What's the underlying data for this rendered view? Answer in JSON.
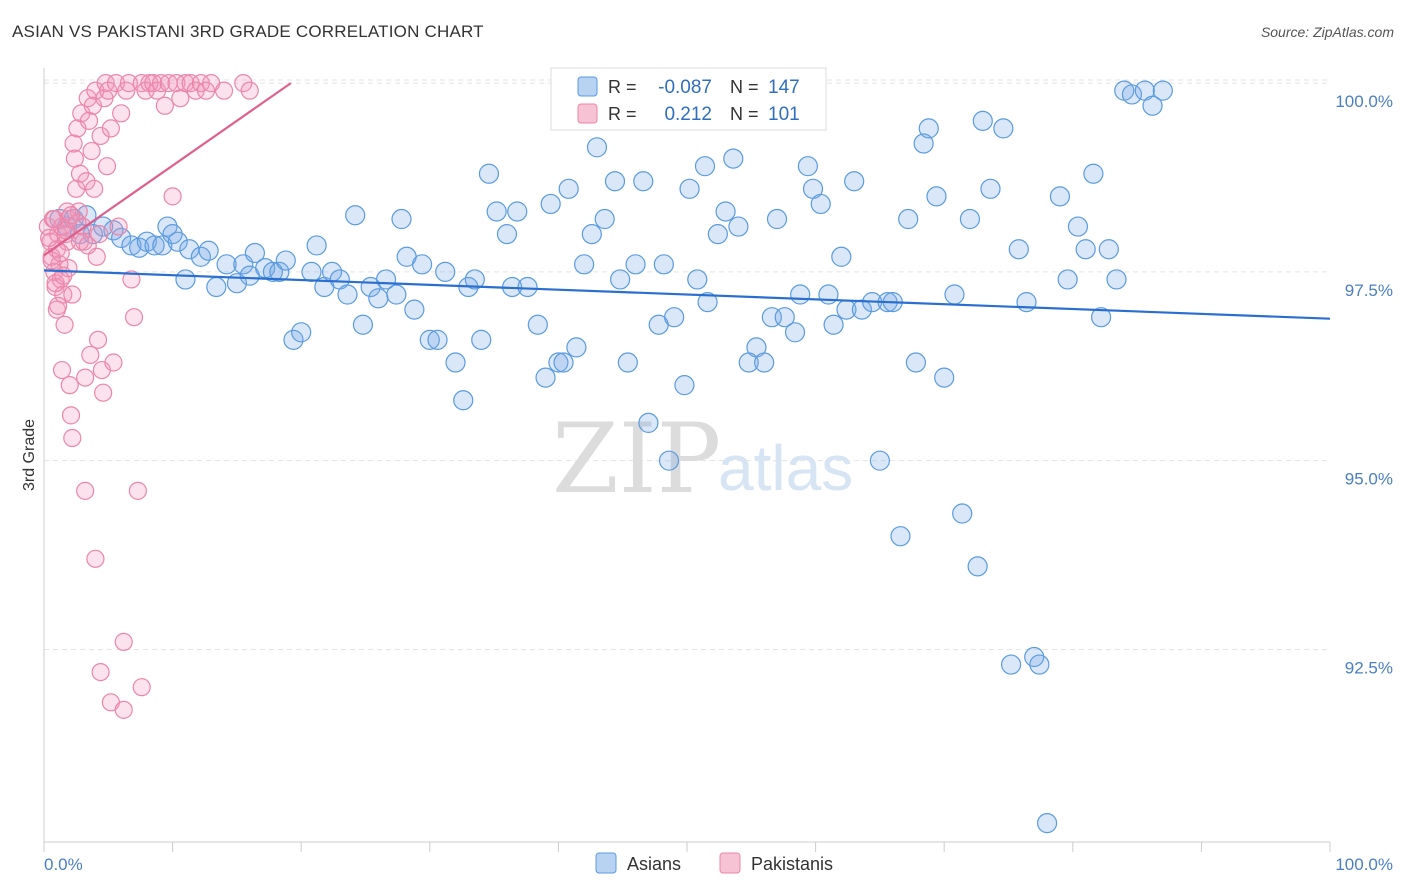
{
  "title": "ASIAN VS PAKISTANI 3RD GRADE CORRELATION CHART",
  "source": "Source: ZipAtlas.com",
  "watermark": {
    "zip": "ZIP",
    "atlas": "atlas"
  },
  "colors": {
    "blue": "#5b9be0",
    "blue_fill": "rgba(120,170,230,0.28)",
    "blue_line": "#2a6fd0",
    "pink": "#ec86a8",
    "pink_fill": "rgba(240,150,185,0.28)",
    "pink_line": "#e0608c",
    "grid": "#e3e3e3",
    "axis": "#cccccc"
  },
  "legend": {
    "rows": [
      {
        "r_label": "R =",
        "r_value": "-0.087",
        "n_label": "N =",
        "n_value": "147"
      },
      {
        "r_label": "R =",
        "r_value": "0.212",
        "n_label": "N =",
        "n_value": "101"
      }
    ]
  },
  "bottom_legend": [
    "Asians",
    "Pakistanis"
  ],
  "chart_data": {
    "type": "scatter",
    "title": "ASIAN VS PAKISTANI 3RD GRADE CORRELATION CHART",
    "xlabel": "",
    "ylabel": "3rd Grade",
    "xlim": [
      0,
      100
    ],
    "ylim": [
      89.95,
      100.2
    ],
    "x_tick_labels": [
      "0.0%",
      "100.0%"
    ],
    "y_ticks": [
      92.5,
      95.0,
      97.5,
      100.0
    ],
    "y_tick_labels": [
      "92.5%",
      "95.0%",
      "97.5%",
      "100.0%"
    ],
    "series": [
      {
        "name": "Asians",
        "R": -0.087,
        "N": 147,
        "trend": {
          "x": [
            0,
            100
          ],
          "y": [
            97.52,
            96.88
          ]
        },
        "points": [
          [
            1.2,
            98.2
          ],
          [
            1.8,
            98.1
          ],
          [
            2.3,
            98.2
          ],
          [
            2.8,
            98.0
          ],
          [
            3.3,
            98.25
          ],
          [
            3.8,
            98.0
          ],
          [
            4.6,
            98.1
          ],
          [
            5.4,
            98.05
          ],
          [
            6.0,
            97.95
          ],
          [
            6.8,
            97.85
          ],
          [
            7.4,
            97.82
          ],
          [
            8.0,
            97.9
          ],
          [
            8.6,
            97.85
          ],
          [
            9.2,
            97.85
          ],
          [
            9.6,
            98.1
          ],
          [
            10.0,
            98.0
          ],
          [
            10.4,
            97.9
          ],
          [
            11.0,
            97.4
          ],
          [
            11.3,
            97.8
          ],
          [
            12.2,
            97.7
          ],
          [
            12.8,
            97.78
          ],
          [
            13.4,
            97.3
          ],
          [
            14.2,
            97.6
          ],
          [
            15.0,
            97.35
          ],
          [
            15.5,
            97.6
          ],
          [
            16.0,
            97.45
          ],
          [
            16.4,
            97.75
          ],
          [
            17.2,
            97.55
          ],
          [
            17.8,
            97.5
          ],
          [
            18.3,
            97.5
          ],
          [
            18.8,
            97.65
          ],
          [
            19.4,
            96.6
          ],
          [
            20.0,
            96.7
          ],
          [
            20.8,
            97.5
          ],
          [
            21.2,
            97.85
          ],
          [
            21.8,
            97.3
          ],
          [
            22.4,
            97.5
          ],
          [
            23.0,
            97.4
          ],
          [
            23.6,
            97.2
          ],
          [
            24.2,
            98.25
          ],
          [
            24.8,
            96.8
          ],
          [
            25.4,
            97.3
          ],
          [
            26.0,
            97.15
          ],
          [
            26.6,
            97.4
          ],
          [
            27.4,
            97.2
          ],
          [
            27.8,
            98.2
          ],
          [
            28.2,
            97.7
          ],
          [
            28.8,
            97.0
          ],
          [
            29.4,
            97.6
          ],
          [
            30.0,
            96.6
          ],
          [
            30.6,
            96.6
          ],
          [
            31.2,
            97.5
          ],
          [
            32.0,
            96.3
          ],
          [
            32.6,
            95.8
          ],
          [
            33.0,
            97.3
          ],
          [
            33.5,
            97.4
          ],
          [
            34.0,
            96.6
          ],
          [
            34.6,
            98.8
          ],
          [
            35.2,
            98.3
          ],
          [
            36.0,
            98.0
          ],
          [
            36.4,
            97.3
          ],
          [
            36.8,
            98.3
          ],
          [
            37.6,
            97.3
          ],
          [
            38.4,
            96.8
          ],
          [
            39.0,
            96.1
          ],
          [
            39.4,
            98.4
          ],
          [
            40.0,
            96.3
          ],
          [
            40.4,
            96.3
          ],
          [
            40.8,
            98.6
          ],
          [
            41.4,
            96.5
          ],
          [
            42.0,
            97.6
          ],
          [
            42.6,
            98.0
          ],
          [
            43.0,
            99.15
          ],
          [
            43.6,
            98.2
          ],
          [
            44.4,
            98.7
          ],
          [
            44.8,
            97.4
          ],
          [
            45.4,
            96.3
          ],
          [
            46.0,
            97.6
          ],
          [
            46.6,
            98.7
          ],
          [
            47.0,
            95.5
          ],
          [
            47.8,
            96.8
          ],
          [
            48.2,
            97.6
          ],
          [
            48.6,
            95.0
          ],
          [
            49.0,
            96.9
          ],
          [
            49.8,
            96.0
          ],
          [
            50.2,
            98.6
          ],
          [
            50.8,
            97.4
          ],
          [
            51.4,
            98.9
          ],
          [
            51.6,
            97.1
          ],
          [
            52.4,
            98.0
          ],
          [
            53.0,
            98.3
          ],
          [
            53.6,
            99.0
          ],
          [
            54.0,
            98.1
          ],
          [
            54.8,
            96.3
          ],
          [
            55.4,
            96.5
          ],
          [
            56.0,
            96.3
          ],
          [
            56.6,
            96.9
          ],
          [
            57.0,
            98.2
          ],
          [
            57.6,
            96.9
          ],
          [
            58.4,
            96.7
          ],
          [
            58.8,
            97.2
          ],
          [
            59.4,
            98.9
          ],
          [
            59.8,
            98.6
          ],
          [
            60.4,
            98.4
          ],
          [
            61.0,
            97.2
          ],
          [
            61.4,
            96.8
          ],
          [
            62.0,
            97.7
          ],
          [
            62.4,
            97.0
          ],
          [
            63.0,
            98.7
          ],
          [
            63.6,
            97.0
          ],
          [
            64.4,
            97.1
          ],
          [
            65.0,
            95.0
          ],
          [
            65.6,
            97.1
          ],
          [
            66.0,
            97.1
          ],
          [
            66.6,
            94.0
          ],
          [
            67.2,
            98.2
          ],
          [
            67.8,
            96.3
          ],
          [
            68.4,
            99.2
          ],
          [
            68.8,
            99.4
          ],
          [
            69.4,
            98.5
          ],
          [
            70.0,
            96.1
          ],
          [
            70.8,
            97.2
          ],
          [
            71.4,
            94.3
          ],
          [
            72.0,
            98.2
          ],
          [
            72.6,
            93.6
          ],
          [
            73.0,
            99.5
          ],
          [
            73.6,
            98.6
          ],
          [
            74.6,
            99.4
          ],
          [
            75.2,
            92.3
          ],
          [
            75.8,
            97.8
          ],
          [
            76.4,
            97.1
          ],
          [
            77.0,
            92.4
          ],
          [
            77.4,
            92.3
          ],
          [
            78.0,
            90.2
          ],
          [
            79.0,
            98.5
          ],
          [
            79.6,
            97.4
          ],
          [
            80.4,
            98.1
          ],
          [
            81.0,
            97.8
          ],
          [
            81.6,
            98.8
          ],
          [
            82.2,
            96.9
          ],
          [
            82.8,
            97.8
          ],
          [
            83.4,
            97.4
          ],
          [
            84.0,
            99.9
          ],
          [
            84.6,
            99.85
          ],
          [
            85.6,
            99.9
          ],
          [
            86.2,
            99.7
          ],
          [
            87.0,
            99.9
          ]
        ]
      },
      {
        "name": "Pakistanis",
        "R": 0.212,
        "N": 101,
        "trend": {
          "x": [
            0,
            19.2
          ],
          "y": [
            97.72,
            100.0
          ]
        },
        "points": [
          [
            0.3,
            98.1
          ],
          [
            0.5,
            97.9
          ],
          [
            0.6,
            97.7
          ],
          [
            0.7,
            98.2
          ],
          [
            0.8,
            97.5
          ],
          [
            0.9,
            97.3
          ],
          [
            1.0,
            97.8
          ],
          [
            1.1,
            98.0
          ],
          [
            1.2,
            97.6
          ],
          [
            1.3,
            97.4
          ],
          [
            1.4,
            98.1
          ],
          [
            1.5,
            97.2
          ],
          [
            1.6,
            96.8
          ],
          [
            1.7,
            98.0
          ],
          [
            1.8,
            97.9
          ],
          [
            1.9,
            98.2
          ],
          [
            2.0,
            96.0
          ],
          [
            2.1,
            95.6
          ],
          [
            2.2,
            95.3
          ],
          [
            2.3,
            99.2
          ],
          [
            2.4,
            99.0
          ],
          [
            2.5,
            98.6
          ],
          [
            2.6,
            99.4
          ],
          [
            2.7,
            98.3
          ],
          [
            2.8,
            98.8
          ],
          [
            2.9,
            99.6
          ],
          [
            3.0,
            98.1
          ],
          [
            3.1,
            97.9
          ],
          [
            3.2,
            96.1
          ],
          [
            3.3,
            98.7
          ],
          [
            3.4,
            99.8
          ],
          [
            3.5,
            99.5
          ],
          [
            3.6,
            96.4
          ],
          [
            3.7,
            99.1
          ],
          [
            3.8,
            99.7
          ],
          [
            3.9,
            98.6
          ],
          [
            4.0,
            99.9
          ],
          [
            4.1,
            97.7
          ],
          [
            4.2,
            96.6
          ],
          [
            4.3,
            98.0
          ],
          [
            4.4,
            99.3
          ],
          [
            4.5,
            96.2
          ],
          [
            4.6,
            95.9
          ],
          [
            4.7,
            99.8
          ],
          [
            4.8,
            100.0
          ],
          [
            4.9,
            98.9
          ],
          [
            5.0,
            99.9
          ],
          [
            5.2,
            99.4
          ],
          [
            5.4,
            96.3
          ],
          [
            5.6,
            100.0
          ],
          [
            5.8,
            98.1
          ],
          [
            6.0,
            99.6
          ],
          [
            6.2,
            92.6
          ],
          [
            6.4,
            99.9
          ],
          [
            6.6,
            100.0
          ],
          [
            6.8,
            97.4
          ],
          [
            7.0,
            96.9
          ],
          [
            7.3,
            94.6
          ],
          [
            7.6,
            100.0
          ],
          [
            7.9,
            99.9
          ],
          [
            8.2,
            100.0
          ],
          [
            8.5,
            100.0
          ],
          [
            8.8,
            99.9
          ],
          [
            9.1,
            100.0
          ],
          [
            9.4,
            99.7
          ],
          [
            9.7,
            100.0
          ],
          [
            10.0,
            98.5
          ],
          [
            10.3,
            100.0
          ],
          [
            10.6,
            99.8
          ],
          [
            11.0,
            100.0
          ],
          [
            11.4,
            100.0
          ],
          [
            11.8,
            99.9
          ],
          [
            12.2,
            100.0
          ],
          [
            12.6,
            99.9
          ],
          [
            13.0,
            100.0
          ],
          [
            14.0,
            99.9
          ],
          [
            15.5,
            100.0
          ],
          [
            16.0,
            99.9
          ],
          [
            1.0,
            97.0
          ],
          [
            2.2,
            97.2
          ],
          [
            3.2,
            94.6
          ],
          [
            4.0,
            93.7
          ],
          [
            4.4,
            92.2
          ],
          [
            5.2,
            91.8
          ],
          [
            6.2,
            91.7
          ],
          [
            7.6,
            92.0
          ],
          [
            1.4,
            96.2
          ],
          [
            2.8,
            97.9
          ],
          [
            0.8,
            98.2
          ],
          [
            1.8,
            98.3
          ],
          [
            2.6,
            98.15
          ],
          [
            3.4,
            97.85
          ],
          [
            0.4,
            97.95
          ],
          [
            0.6,
            97.65
          ],
          [
            0.9,
            97.35
          ],
          [
            1.1,
            97.05
          ],
          [
            1.3,
            97.75
          ],
          [
            1.5,
            97.45
          ],
          [
            1.7,
            98.05
          ],
          [
            1.9,
            97.55
          ],
          [
            2.1,
            98.25
          ]
        ]
      }
    ]
  }
}
